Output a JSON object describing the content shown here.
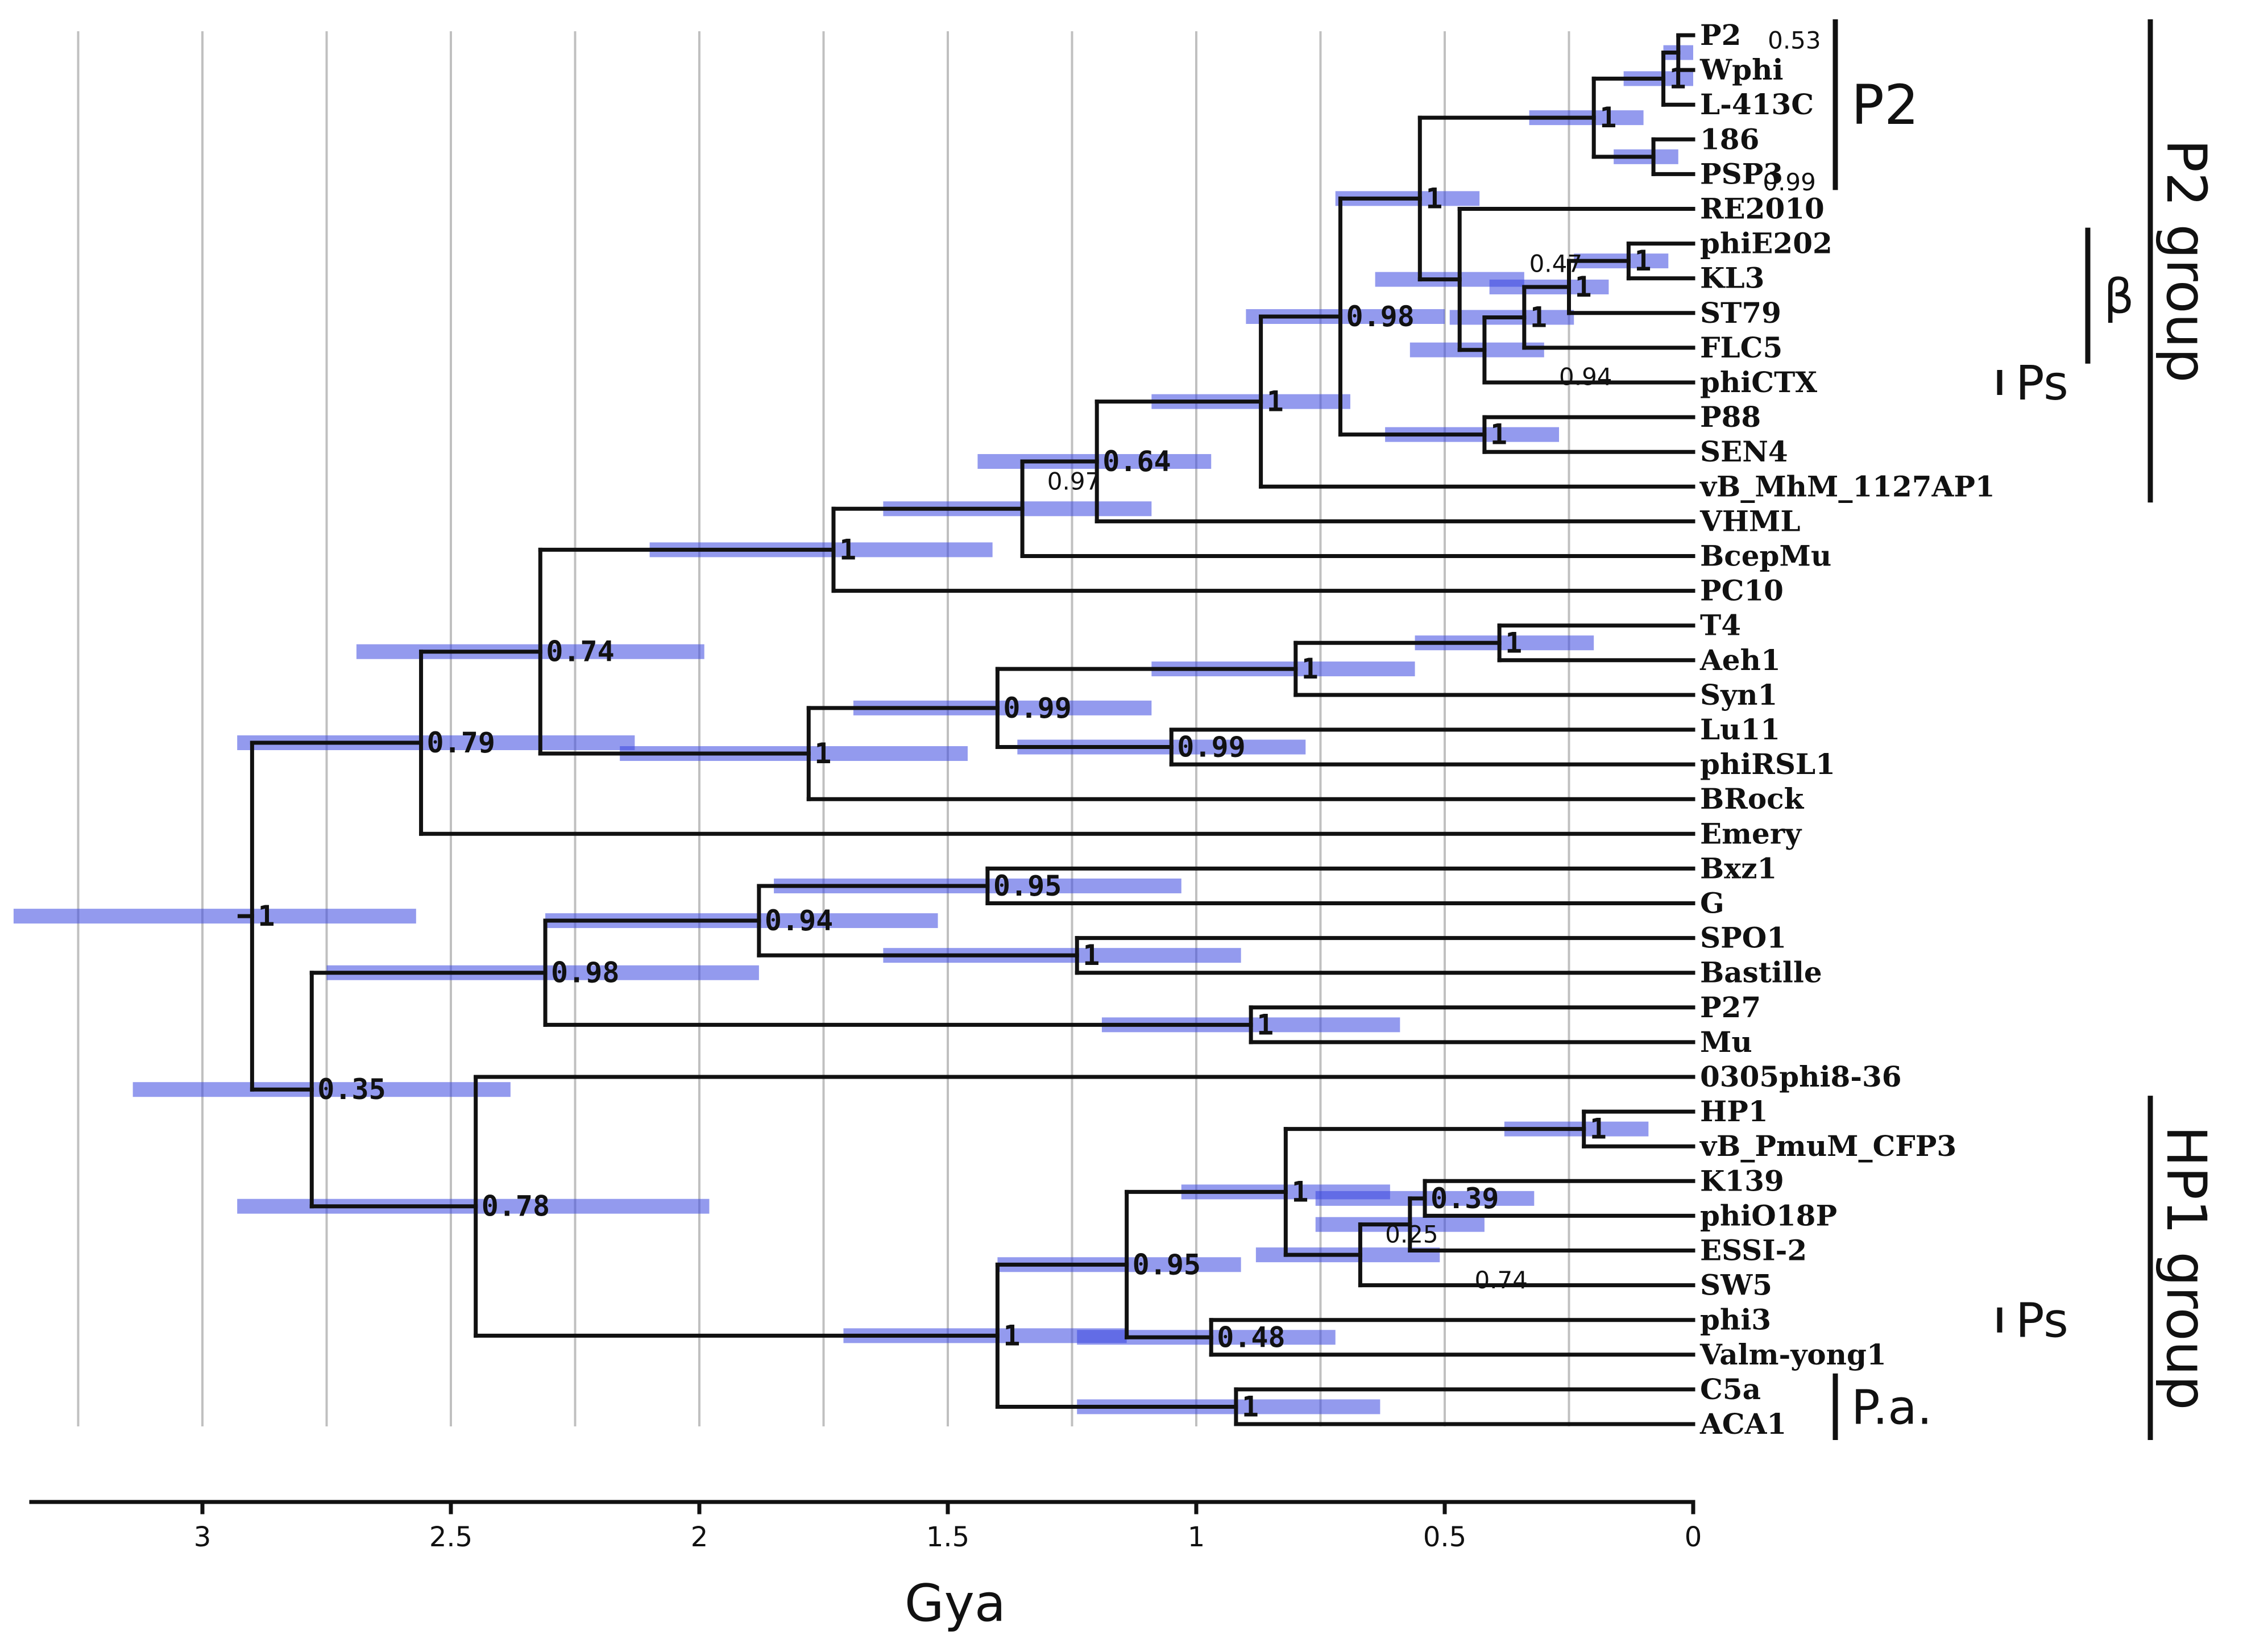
{
  "axis": {
    "title": "Gya",
    "min": 0,
    "max": 3.4,
    "ticks": [
      {
        "value": 3,
        "label": "3"
      },
      {
        "value": 2.5,
        "label": "2.5"
      },
      {
        "value": 2,
        "label": "2"
      },
      {
        "value": 1.5,
        "label": "1.5"
      },
      {
        "value": 1,
        "label": "1"
      },
      {
        "value": 0.5,
        "label": "0.5"
      },
      {
        "value": 0,
        "label": "0"
      }
    ],
    "gridlines": [
      0.25,
      0.5,
      0.75,
      1,
      1.25,
      1.5,
      1.75,
      2,
      2.25,
      2.5,
      2.75,
      3,
      3.25
    ]
  },
  "tips": [
    "P2",
    "Wphi",
    "L-413C",
    "186",
    "PSP3",
    "RE2010",
    "phiE202",
    "KL3",
    "ST79",
    "FLC5",
    "phiCTX",
    "P88",
    "SEN4",
    "vB_MhM_1127AP1",
    "VHML",
    "BcepMu",
    "PC10",
    "T4",
    "Aeh1",
    "Syn1",
    "Lu11",
    "phiRSL1",
    "BRock",
    "Emery",
    "Bxz1",
    "G",
    "SPO1",
    "Bastille",
    "P27",
    "Mu",
    "0305phi8-36",
    "HP1",
    "vB_PmuM_CFP3",
    "K139",
    "phiO18P",
    "ESSI-2",
    "SW5",
    "phi3",
    "Valm-yong1",
    "C5a",
    "ACA1"
  ],
  "nodes": [
    {
      "id": "n_p2w",
      "t": 0.03,
      "children": [
        "P2",
        "Wphi"
      ],
      "support": "0.53",
      "hpd": [
        0.06,
        0.0
      ],
      "small": true,
      "lx": -0.18,
      "ly": -0.35
    },
    {
      "id": "n_p2wl",
      "t": 0.06,
      "children": [
        "n_p2w",
        "L-413C"
      ],
      "support": "1",
      "hpd": [
        0.14,
        0.0
      ]
    },
    {
      "id": "n_186",
      "t": 0.08,
      "children": [
        "186",
        "PSP3"
      ],
      "support": "0.99",
      "hpd": [
        0.16,
        0.03
      ],
      "small": true,
      "lx": -0.22,
      "ly": 0.75
    },
    {
      "id": "n_p2",
      "t": 0.2,
      "children": [
        "n_p2wl",
        "n_186"
      ],
      "support": "1",
      "hpd": [
        0.33,
        0.1
      ]
    },
    {
      "id": "n_e202",
      "t": 0.13,
      "children": [
        "phiE202",
        "KL3"
      ],
      "support": "1",
      "hpd": [
        0.24,
        0.05
      ]
    },
    {
      "id": "n_st79",
      "t": 0.25,
      "children": [
        "n_e202",
        "ST79"
      ],
      "support": "1",
      "hpd": [
        0.41,
        0.17
      ]
    },
    {
      "id": "n_flc5",
      "t": 0.34,
      "children": [
        "n_st79",
        "FLC5"
      ],
      "support": "1",
      "hpd": [
        0.49,
        0.24
      ]
    },
    {
      "id": "n_ctx",
      "t": 0.42,
      "children": [
        "n_flc5",
        "phiCTX"
      ],
      "support": "0.94",
      "hpd": [
        0.57,
        0.3
      ],
      "small": true,
      "lx": -0.15,
      "ly": 0.8
    },
    {
      "id": "n_re",
      "t": 0.47,
      "children": [
        "RE2010",
        "n_ctx"
      ],
      "support": "0.47",
      "hpd": [
        0.64,
        0.34
      ],
      "small": true,
      "lx": -0.14,
      "ly": -0.45
    },
    {
      "id": "n_p2re",
      "t": 0.55,
      "children": [
        "n_p2",
        "n_re"
      ],
      "support": "1",
      "hpd": [
        0.72,
        0.43
      ]
    },
    {
      "id": "n_p88",
      "t": 0.42,
      "children": [
        "P88",
        "SEN4"
      ],
      "support": "1",
      "hpd": [
        0.62,
        0.27
      ]
    },
    {
      "id": "n_p88b",
      "t": 0.71,
      "children": [
        "n_p2re",
        "n_p88"
      ],
      "support": "0.98",
      "hpd": [
        0.9,
        0.5
      ]
    },
    {
      "id": "n_mhm",
      "t": 0.87,
      "children": [
        "n_p88b",
        "vB_MhM_1127AP1"
      ],
      "support": "1",
      "hpd": [
        1.09,
        0.69
      ]
    },
    {
      "id": "n_vhml",
      "t": 1.2,
      "children": [
        "n_mhm",
        "VHML"
      ],
      "support": "0.64",
      "hpd": [
        1.44,
        0.97
      ]
    },
    {
      "id": "n_bcep",
      "t": 1.35,
      "children": [
        "n_vhml",
        "BcepMu"
      ],
      "support": "0.97",
      "hpd": [
        1.63,
        1.09
      ],
      "small": true,
      "lx": -0.05,
      "ly": -0.8
    },
    {
      "id": "n_pc10",
      "t": 1.73,
      "children": [
        "n_bcep",
        "PC10"
      ],
      "support": "1",
      "hpd": [
        2.1,
        1.41
      ]
    },
    {
      "id": "n_t4",
      "t": 0.39,
      "children": [
        "T4",
        "Aeh1"
      ],
      "support": "1",
      "hpd": [
        0.56,
        0.2
      ]
    },
    {
      "id": "n_syn",
      "t": 0.8,
      "children": [
        "n_t4",
        "Syn1"
      ],
      "support": "1",
      "hpd": [
        1.09,
        0.56
      ]
    },
    {
      "id": "n_lu",
      "t": 1.05,
      "children": [
        "Lu11",
        "phiRSL1"
      ],
      "support": "0.99",
      "hpd": [
        1.36,
        0.78
      ]
    },
    {
      "id": "n_syn_lu",
      "t": 1.4,
      "children": [
        "n_syn",
        "n_lu"
      ],
      "support": "0.99",
      "hpd": [
        1.69,
        1.09
      ]
    },
    {
      "id": "n_brock",
      "t": 1.78,
      "children": [
        "n_syn_lu",
        "BRock"
      ],
      "support": "1",
      "hpd": [
        2.16,
        1.46
      ]
    },
    {
      "id": "n_074",
      "t": 2.32,
      "children": [
        "n_pc10",
        "n_brock"
      ],
      "support": "0.74",
      "hpd": [
        2.69,
        1.99
      ]
    },
    {
      "id": "n_079",
      "t": 2.56,
      "children": [
        "n_074",
        "Emery"
      ],
      "support": "0.79",
      "hpd": [
        2.93,
        2.13
      ]
    },
    {
      "id": "n_bxz",
      "t": 1.42,
      "children": [
        "Bxz1",
        "G"
      ],
      "support": "0.95",
      "hpd": [
        1.85,
        1.03
      ]
    },
    {
      "id": "n_spo",
      "t": 1.24,
      "children": [
        "SPO1",
        "Bastille"
      ],
      "support": "1",
      "hpd": [
        1.63,
        0.91
      ]
    },
    {
      "id": "n_094",
      "t": 1.88,
      "children": [
        "n_bxz",
        "n_spo"
      ],
      "support": "0.94",
      "hpd": [
        2.31,
        1.52
      ]
    },
    {
      "id": "n_mu",
      "t": 0.89,
      "children": [
        "P27",
        "Mu"
      ],
      "support": "1",
      "hpd": [
        1.19,
        0.59
      ]
    },
    {
      "id": "n_098",
      "t": 2.31,
      "children": [
        "n_094",
        "n_mu"
      ],
      "support": "0.98",
      "hpd": [
        2.75,
        1.88
      ]
    },
    {
      "id": "n_hp1a",
      "t": 0.22,
      "children": [
        "HP1",
        "vB_PmuM_CFP3"
      ],
      "support": "1",
      "hpd": [
        0.38,
        0.09
      ]
    },
    {
      "id": "n_k139",
      "t": 0.54,
      "children": [
        "K139",
        "phiO18P"
      ],
      "support": "0.39",
      "hpd": [
        0.76,
        0.32
      ]
    },
    {
      "id": "n_essi",
      "t": 0.57,
      "children": [
        "n_k139",
        "ESSI-2"
      ],
      "support": "0.25",
      "hpd": [
        0.76,
        0.42
      ],
      "small": true,
      "lx": 0.05,
      "ly": 0.3
    },
    {
      "id": "n_sw5",
      "t": 0.67,
      "children": [
        "n_essi",
        "SW5"
      ],
      "support": "0.74",
      "hpd": [
        0.88,
        0.51
      ],
      "small": true,
      "lx": -0.23,
      "ly": 0.75
    },
    {
      "id": "n_hp1b",
      "t": 0.82,
      "children": [
        "n_hp1a",
        "n_sw5"
      ],
      "support": "1",
      "hpd": [
        1.03,
        0.61
      ]
    },
    {
      "id": "n_phi3",
      "t": 0.97,
      "children": [
        "phi3",
        "Valm-yong1"
      ],
      "support": "0.48",
      "hpd": [
        1.24,
        0.72
      ]
    },
    {
      "id": "n_095b",
      "t": 1.14,
      "children": [
        "n_hp1b",
        "n_phi3"
      ],
      "support": "0.95",
      "hpd": [
        1.4,
        0.91
      ]
    },
    {
      "id": "n_c5a",
      "t": 0.92,
      "children": [
        "C5a",
        "ACA1"
      ],
      "support": "1",
      "hpd": [
        1.24,
        0.63
      ]
    },
    {
      "id": "n_hp1root",
      "t": 1.4,
      "children": [
        "n_095b",
        "n_c5a"
      ],
      "support": "1",
      "hpd": [
        1.71,
        1.14
      ]
    },
    {
      "id": "n_078",
      "t": 2.45,
      "children": [
        "0305phi8-36",
        "n_hp1root"
      ],
      "support": "0.78",
      "hpd": [
        2.93,
        1.98
      ]
    },
    {
      "id": "n_035",
      "t": 2.78,
      "children": [
        "n_098",
        "n_078"
      ],
      "support": "0.35",
      "hpd": [
        3.14,
        2.38
      ]
    },
    {
      "id": "n_root",
      "t": 2.9,
      "children": [
        "n_079",
        "n_035"
      ],
      "support": "1",
      "hpd": [
        3.38,
        2.57
      ]
    }
  ],
  "clades": [
    {
      "name": "P2-inner",
      "label": "P2",
      "from": "P2",
      "to": "PSP3",
      "level": 1,
      "size": "big"
    },
    {
      "name": "beta",
      "label": "β",
      "from": "phiE202",
      "to": "FLC5",
      "level": 2,
      "size": "mid"
    },
    {
      "name": "ps-top",
      "label": "Ps",
      "from": "phiCTX",
      "to": "phiCTX",
      "level": 3,
      "size": "mid"
    },
    {
      "name": "P2group",
      "label": "P2 group",
      "from": "P2",
      "to": "vB_MhM_1127AP1",
      "level": 4,
      "size": "big",
      "vertical": true
    },
    {
      "name": "HP1group",
      "label": "HP1 group",
      "from": "HP1",
      "to": "ACA1",
      "level": 4,
      "size": "big",
      "vertical": true
    },
    {
      "name": "ps-bottom",
      "label": "Ps",
      "from": "phi3",
      "to": "phi3",
      "level": 3,
      "size": "mid"
    },
    {
      "name": "pa",
      "label": "P.a.",
      "from": "C5a",
      "to": "ACA1",
      "level": 1,
      "size": "mid"
    }
  ]
}
